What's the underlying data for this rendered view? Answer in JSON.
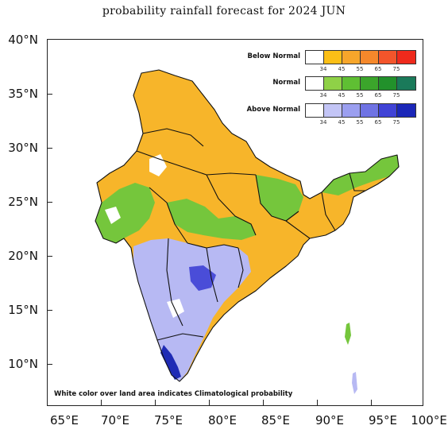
{
  "title": "probability rainfall forecast for 2024 JUN",
  "axes": {
    "y_labels": [
      "40°N",
      "35°N",
      "30°N",
      "25°N",
      "20°N",
      "15°N",
      "10°N"
    ],
    "x_labels": [
      "65°E",
      "70°E",
      "75°E",
      "80°E",
      "85°E",
      "90°E",
      "95°E",
      "100°E"
    ]
  },
  "legend": {
    "categories": [
      {
        "name": "Below Normal",
        "colors": [
          "#ffffff",
          "#fbbf17",
          "#f7a62b",
          "#f5882b",
          "#f3552b",
          "#ef2a1c"
        ]
      },
      {
        "name": "Normal",
        "colors": [
          "#ffffff",
          "#8fd147",
          "#5fbf33",
          "#3ba52b",
          "#22912b",
          "#1a7a5a"
        ]
      },
      {
        "name": "Above Normal",
        "colors": [
          "#ffffff",
          "#c3c5f6",
          "#9b9ff0",
          "#6f73e4",
          "#4043d6",
          "#1b27b8"
        ]
      }
    ],
    "ticks": [
      "34",
      "45",
      "55",
      "65",
      "75"
    ]
  },
  "note": "White color over land area indicates Climatological probability",
  "map_colors": {
    "below": "#f7b52a",
    "normal": "#75c63c",
    "above": "#b7b9f3",
    "above_strong": "#4a4dd8",
    "above_deep": "#1f2bb5",
    "clim": "#ffffff",
    "border": "#111111"
  }
}
